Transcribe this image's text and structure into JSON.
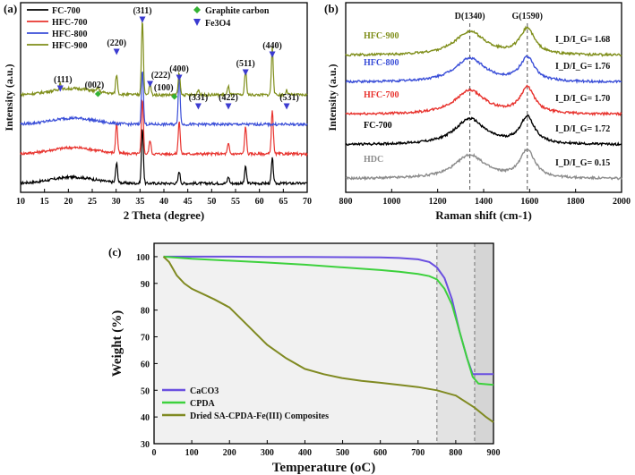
{
  "panels": {
    "a": "(a)",
    "b": "(b)",
    "c": "(c)"
  },
  "chart_data": [
    {
      "type": "line",
      "panel_label": "(a)",
      "xlabel": "2 Theta (degree)",
      "ylabel": "Intensity (a.u.)",
      "xlim": [
        10,
        70
      ],
      "x_ticks": [
        10,
        15,
        20,
        25,
        30,
        35,
        40,
        45,
        50,
        55,
        60,
        65,
        70
      ],
      "legend_position": "top-left",
      "series": [
        {
          "name": "FC-700",
          "color": "#000000",
          "offset": 0,
          "peaks": [
            [
              30.1,
              0.35
            ],
            [
              35.5,
              1.0
            ],
            [
              43.2,
              0.22
            ],
            [
              53.5,
              0.12
            ],
            [
              57.1,
              0.3
            ],
            [
              62.7,
              0.45
            ]
          ]
        },
        {
          "name": "HFC-700",
          "color": "#e8342f",
          "offset": 1,
          "peaks": [
            [
              30.1,
              0.55
            ],
            [
              35.5,
              1.0
            ],
            [
              37.1,
              0.25
            ],
            [
              43.2,
              0.6
            ],
            [
              53.5,
              0.18
            ],
            [
              57.1,
              0.5
            ],
            [
              62.7,
              0.8
            ]
          ]
        },
        {
          "name": "HFC-800",
          "color": "#3b4fd8",
          "offset": 2,
          "peaks": [
            [
              35.5,
              1.0
            ],
            [
              43.2,
              0.9
            ]
          ]
        },
        {
          "name": "HFC-900",
          "color": "#7f8e1a",
          "offset": 3,
          "peaks": [
            [
              18.3,
              0.12
            ],
            [
              26.2,
              0.08
            ],
            [
              30.1,
              0.35
            ],
            [
              35.5,
              1.35
            ],
            [
              37.1,
              0.2
            ],
            [
              43.2,
              0.4
            ],
            [
              47.2,
              0.1
            ],
            [
              53.5,
              0.15
            ],
            [
              57.1,
              0.45
            ],
            [
              62.7,
              0.85
            ],
            [
              65.7,
              0.08
            ]
          ]
        }
      ],
      "peak_labels": [
        {
          "text": "(111)",
          "x": 18.3,
          "marker": "triangle"
        },
        {
          "text": "(002)",
          "x": 26.2,
          "marker": "diamond"
        },
        {
          "text": "(220)",
          "x": 30.1,
          "marker": "triangle"
        },
        {
          "text": "(311)",
          "x": 35.5,
          "marker": "triangle"
        },
        {
          "text": "(222)",
          "x": 37.1,
          "marker": "triangle"
        },
        {
          "text": "(100)",
          "x": 42.2,
          "marker": "diamond"
        },
        {
          "text": "(400)",
          "x": 43.2,
          "marker": "triangle"
        },
        {
          "text": "(331)",
          "x": 47.2,
          "marker": "triangle"
        },
        {
          "text": "(422)",
          "x": 53.5,
          "marker": "triangle"
        },
        {
          "text": "(511)",
          "x": 57.1,
          "marker": "triangle"
        },
        {
          "text": "(440)",
          "x": 62.7,
          "marker": "triangle"
        },
        {
          "text": "(531)",
          "x": 65.7,
          "marker": "triangle"
        }
      ],
      "marker_legend": [
        {
          "label": "Graphite carbon",
          "marker": "diamond",
          "color": "#33b233"
        },
        {
          "label": "Fe3O4",
          "marker": "triangle",
          "color": "#3b3bd0"
        }
      ]
    },
    {
      "type": "line",
      "panel_label": "(b)",
      "xlabel": "Raman shift (cm-1)",
      "ylabel": "Intensity (a.u.)",
      "xlim": [
        800,
        2000
      ],
      "x_ticks": [
        800,
        1000,
        1200,
        1400,
        1600,
        1800,
        2000
      ],
      "reference_lines": [
        {
          "label": "D(1340)",
          "x": 1340
        },
        {
          "label": "G(1590)",
          "x": 1590
        }
      ],
      "series": [
        {
          "name": "HDC",
          "color": "#8c8c8c",
          "offset": 0,
          "id_ig": "I_D/I_G= 0.15",
          "d_height": 0.55,
          "g_height": 0.65
        },
        {
          "name": "FC-700",
          "color": "#000000",
          "offset": 1,
          "id_ig": "I_D/I_G= 1.72",
          "d_height": 0.6,
          "g_height": 0.62
        },
        {
          "name": "HFC-700",
          "color": "#e8342f",
          "offset": 2,
          "id_ig": "I_D/I_G= 1.70",
          "d_height": 0.55,
          "g_height": 0.6
        },
        {
          "name": "HFC-800",
          "color": "#3b4fd8",
          "offset": 3,
          "id_ig": "I_D/I_G= 1.76",
          "d_height": 0.55,
          "g_height": 0.55
        },
        {
          "name": "HFC-900",
          "color": "#7f8e1a",
          "offset": 4,
          "id_ig": "I_D/I_G= 1.68",
          "d_height": 0.55,
          "g_height": 0.6
        }
      ]
    },
    {
      "type": "line",
      "panel_label": "(c)",
      "xlabel": "Temperature (oC)",
      "ylabel": "Weight (%)",
      "xlim": [
        0,
        900
      ],
      "ylim": [
        30,
        105
      ],
      "x_ticks": [
        0,
        100,
        200,
        300,
        400,
        500,
        600,
        700,
        800,
        900
      ],
      "y_ticks": [
        30,
        40,
        50,
        60,
        70,
        80,
        90,
        100
      ],
      "shaded_region": [
        750,
        850
      ],
      "legend_position": "bottom-left",
      "series": [
        {
          "name": "CaCO3",
          "color": "#6a4fe0",
          "x": [
            25,
            100,
            200,
            300,
            400,
            500,
            600,
            650,
            700,
            730,
            750,
            770,
            790,
            810,
            830,
            845,
            855,
            900
          ],
          "y": [
            100,
            100,
            100,
            99.9,
            99.9,
            99.8,
            99.7,
            99.5,
            99,
            98,
            96,
            92,
            84,
            72,
            62,
            56,
            56,
            56
          ]
        },
        {
          "name": "CPDA",
          "color": "#3dd13d",
          "x": [
            25,
            100,
            200,
            300,
            400,
            500,
            600,
            650,
            700,
            730,
            750,
            770,
            790,
            810,
            830,
            845,
            860,
            900
          ],
          "y": [
            100,
            99.2,
            98.5,
            97.8,
            97,
            96,
            95,
            94.4,
            93.5,
            92.7,
            91.5,
            88,
            82,
            72,
            62,
            55,
            52.5,
            52
          ]
        },
        {
          "name": "Dried SA-CPDA-Fe(III) Composites",
          "color": "#808a22",
          "x": [
            25,
            40,
            60,
            80,
            100,
            130,
            160,
            200,
            250,
            300,
            350,
            400,
            450,
            500,
            550,
            600,
            650,
            700,
            750,
            800,
            850,
            880,
            900
          ],
          "y": [
            100,
            98,
            93,
            90,
            88,
            86,
            84,
            81,
            74,
            67,
            62,
            58,
            56,
            54.5,
            53.5,
            52.8,
            52,
            51.2,
            50,
            48,
            43.5,
            40,
            38
          ]
        }
      ]
    }
  ]
}
